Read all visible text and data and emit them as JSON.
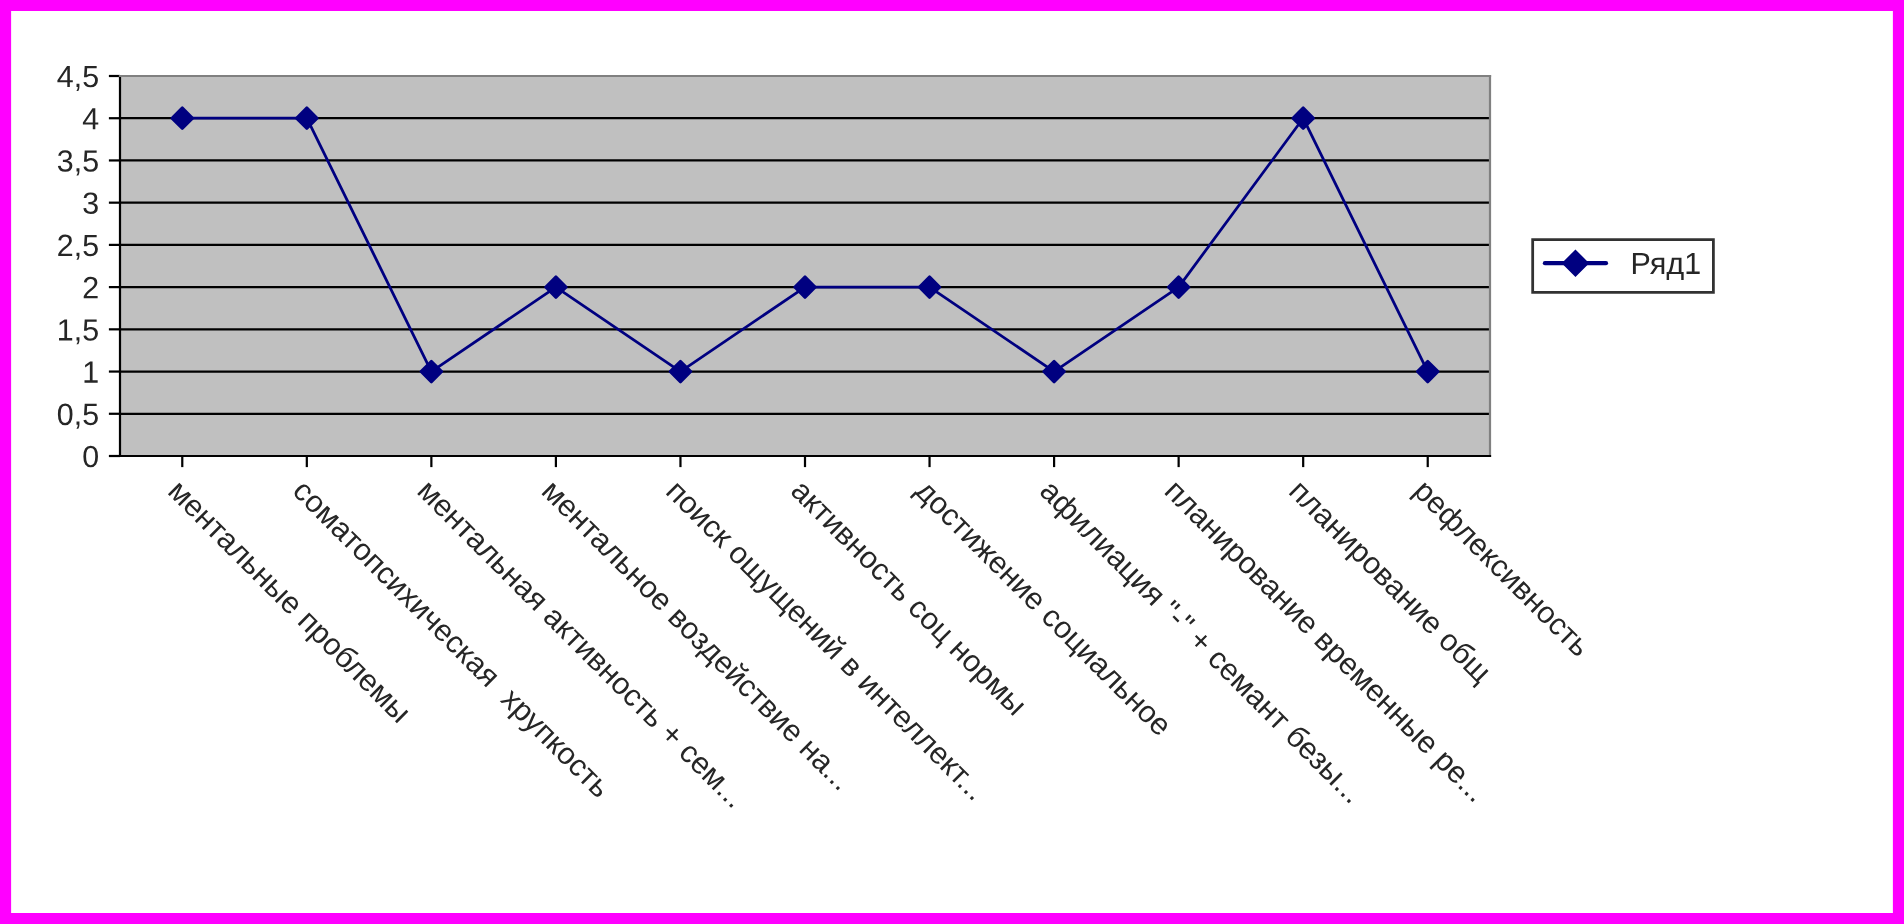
{
  "chart_data": {
    "type": "line",
    "categories": [
      "ментальные проблемы",
      "соматопсихическая  хрупкость",
      "ментальная активность + сем...",
      "ментальное воздействие на...",
      "поиск ощущений в интеллект...",
      "активность соц нормы",
      "достижение социальное",
      "афилиация \"-\" + семант безы...",
      "планирование временные ре...",
      "планирование общ",
      "рефлексивность"
    ],
    "series": [
      {
        "name": "Ряд1",
        "color": "#000080",
        "values": [
          4,
          4,
          1,
          2,
          1,
          2,
          2,
          1,
          2,
          4,
          1
        ]
      }
    ],
    "ylim": [
      0,
      4.5
    ],
    "yticks": [
      0,
      {
        "value": 0.5,
        "label": "0,5"
      },
      1,
      {
        "value": 1.5,
        "label": "1,5"
      },
      2,
      {
        "value": 2.5,
        "label": "2,5"
      },
      3,
      {
        "value": 3.5,
        "label": "3,5"
      },
      4,
      {
        "value": 4.5,
        "label": "4,5"
      }
    ],
    "grid": "y",
    "legend": "right",
    "marker": "diamond",
    "line_style": "solid"
  }
}
